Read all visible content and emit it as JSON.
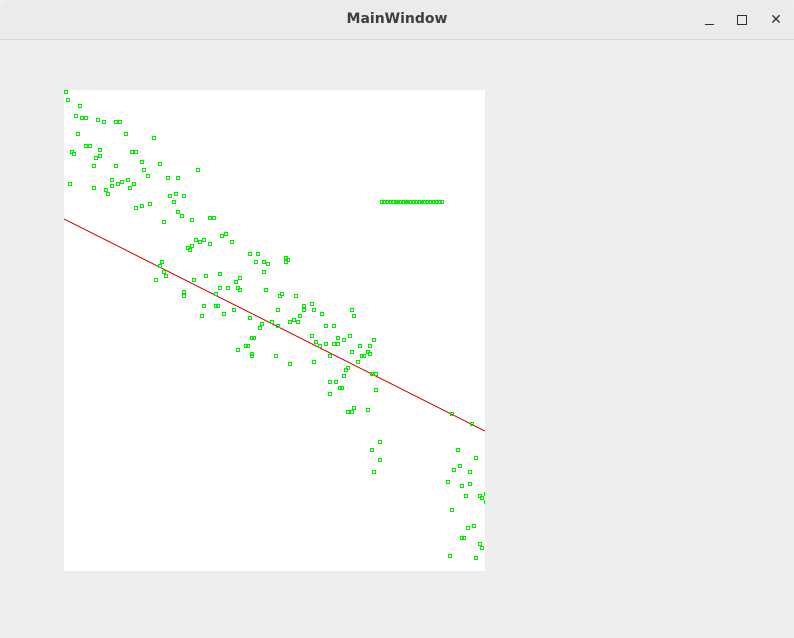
{
  "window": {
    "title": "MainWindow",
    "minimize_icon": "minimize-icon",
    "maximize_icon": "maximize-icon",
    "close_icon": "close-icon"
  },
  "chart_data": {
    "type": "scatter",
    "xlim": [
      0,
      421
    ],
    "ylim": [
      481,
      0
    ],
    "grid": false,
    "point_color": "#00ee00",
    "line_color": "#cc0000",
    "regression_line": {
      "x": [
        0,
        421
      ],
      "y": [
        129,
        341
      ]
    },
    "points": [
      [
        2,
        2
      ],
      [
        4,
        10
      ],
      [
        16,
        16
      ],
      [
        12,
        26
      ],
      [
        18,
        28
      ],
      [
        22,
        28
      ],
      [
        34,
        30
      ],
      [
        40,
        32
      ],
      [
        52,
        32
      ],
      [
        56,
        32
      ],
      [
        62,
        44
      ],
      [
        14,
        44
      ],
      [
        90,
        48
      ],
      [
        22,
        56
      ],
      [
        26,
        56
      ],
      [
        8,
        62
      ],
      [
        10,
        64
      ],
      [
        36,
        60
      ],
      [
        36,
        66
      ],
      [
        32,
        68
      ],
      [
        68,
        62
      ],
      [
        72,
        62
      ],
      [
        78,
        72
      ],
      [
        96,
        74
      ],
      [
        134,
        80
      ],
      [
        30,
        76
      ],
      [
        52,
        76
      ],
      [
        80,
        80
      ],
      [
        84,
        86
      ],
      [
        104,
        88
      ],
      [
        114,
        88
      ],
      [
        6,
        94
      ],
      [
        30,
        98
      ],
      [
        48,
        90
      ],
      [
        64,
        90
      ],
      [
        48,
        96
      ],
      [
        54,
        94
      ],
      [
        58,
        92
      ],
      [
        70,
        94
      ],
      [
        66,
        98
      ],
      [
        42,
        100
      ],
      [
        44,
        104
      ],
      [
        86,
        114
      ],
      [
        106,
        106
      ],
      [
        110,
        112
      ],
      [
        112,
        104
      ],
      [
        120,
        106
      ],
      [
        72,
        118
      ],
      [
        78,
        116
      ],
      [
        86,
        114
      ],
      [
        114,
        122
      ],
      [
        118,
        126
      ],
      [
        128,
        130
      ],
      [
        146,
        128
      ],
      [
        150,
        128
      ],
      [
        100,
        132
      ],
      [
        158,
        146
      ],
      [
        162,
        144
      ],
      [
        168,
        152
      ],
      [
        186,
        164
      ],
      [
        192,
        172
      ],
      [
        136,
        152
      ],
      [
        128,
        156
      ],
      [
        132,
        150
      ],
      [
        140,
        150
      ],
      [
        146,
        154
      ],
      [
        126,
        160
      ],
      [
        124,
        158
      ],
      [
        194,
        164
      ],
      [
        222,
        168
      ],
      [
        224,
        170
      ],
      [
        222,
        172
      ],
      [
        98,
        172
      ],
      [
        96,
        176
      ],
      [
        100,
        182
      ],
      [
        102,
        186
      ],
      [
        130,
        190
      ],
      [
        92,
        190
      ],
      [
        156,
        184
      ],
      [
        142,
        186
      ],
      [
        176,
        188
      ],
      [
        172,
        192
      ],
      [
        174,
        198
      ],
      [
        200,
        172
      ],
      [
        204,
        174
      ],
      [
        200,
        182
      ],
      [
        156,
        198
      ],
      [
        164,
        198
      ],
      [
        176,
        200
      ],
      [
        202,
        200
      ],
      [
        216,
        206
      ],
      [
        218,
        204
      ],
      [
        232,
        206
      ],
      [
        152,
        204
      ],
      [
        154,
        216
      ],
      [
        140,
        216
      ],
      [
        138,
        226
      ],
      [
        120,
        202
      ],
      [
        120,
        206
      ],
      [
        152,
        216
      ],
      [
        160,
        224
      ],
      [
        186,
        228
      ],
      [
        170,
        220
      ],
      [
        198,
        234
      ],
      [
        208,
        232
      ],
      [
        214,
        236
      ],
      [
        226,
        232
      ],
      [
        234,
        232
      ],
      [
        236,
        226
      ],
      [
        240,
        220
      ],
      [
        248,
        246
      ],
      [
        252,
        252
      ],
      [
        256,
        256
      ],
      [
        262,
        254
      ],
      [
        270,
        254
      ],
      [
        274,
        254
      ],
      [
        280,
        250
      ],
      [
        290,
        226
      ],
      [
        286,
        246
      ],
      [
        296,
        256
      ],
      [
        288,
        262
      ],
      [
        298,
        266
      ],
      [
        300,
        266
      ],
      [
        306,
        256
      ],
      [
        310,
        250
      ],
      [
        304,
        262
      ],
      [
        196,
        238
      ],
      [
        214,
        220
      ],
      [
        230,
        230
      ],
      [
        240,
        216
      ],
      [
        248,
        214
      ],
      [
        258,
        224
      ],
      [
        288,
        220
      ],
      [
        250,
        220
      ],
      [
        262,
        236
      ],
      [
        274,
        248
      ],
      [
        270,
        236
      ],
      [
        188,
        248
      ],
      [
        174,
        260
      ],
      [
        182,
        256
      ],
      [
        188,
        264
      ],
      [
        188,
        266
      ],
      [
        184,
        256
      ],
      [
        190,
        248
      ],
      [
        212,
        266
      ],
      [
        226,
        274
      ],
      [
        266,
        266
      ],
      [
        250,
        272
      ],
      [
        272,
        292
      ],
      [
        280,
        286
      ],
      [
        284,
        278
      ],
      [
        278,
        298
      ],
      [
        290,
        318
      ],
      [
        266,
        304
      ],
      [
        308,
        284
      ],
      [
        312,
        284
      ],
      [
        312,
        300
      ],
      [
        306,
        264
      ],
      [
        294,
        272
      ],
      [
        282,
        280
      ],
      [
        266,
        292
      ],
      [
        276,
        298
      ],
      [
        288,
        322
      ],
      [
        284,
        322
      ],
      [
        308,
        360
      ],
      [
        310,
        382
      ],
      [
        316,
        352
      ],
      [
        316,
        370
      ],
      [
        304,
        320
      ],
      [
        318,
        112
      ],
      [
        320,
        112
      ],
      [
        324,
        112
      ],
      [
        326,
        112
      ],
      [
        330,
        112
      ],
      [
        332,
        112
      ],
      [
        334,
        112
      ],
      [
        336,
        112
      ],
      [
        340,
        112
      ],
      [
        342,
        112
      ],
      [
        344,
        112
      ],
      [
        346,
        112
      ],
      [
        350,
        112
      ],
      [
        352,
        112
      ],
      [
        356,
        112
      ],
      [
        358,
        112
      ],
      [
        360,
        112
      ],
      [
        364,
        112
      ],
      [
        366,
        112
      ],
      [
        370,
        112
      ],
      [
        372,
        112
      ],
      [
        376,
        112
      ],
      [
        378,
        112
      ],
      [
        388,
        324
      ],
      [
        408,
        334
      ],
      [
        394,
        360
      ],
      [
        396,
        376
      ],
      [
        390,
        380
      ],
      [
        406,
        382
      ],
      [
        412,
        368
      ],
      [
        398,
        396
      ],
      [
        402,
        406
      ],
      [
        384,
        392
      ],
      [
        388,
        420
      ],
      [
        406,
        394
      ],
      [
        412,
        468
      ],
      [
        416,
        454
      ],
      [
        418,
        458
      ],
      [
        416,
        406
      ],
      [
        418,
        408
      ],
      [
        400,
        448
      ],
      [
        398,
        448
      ],
      [
        386,
        466
      ],
      [
        410,
        436
      ],
      [
        404,
        438
      ],
      [
        422,
        412
      ],
      [
        422,
        404
      ]
    ]
  }
}
